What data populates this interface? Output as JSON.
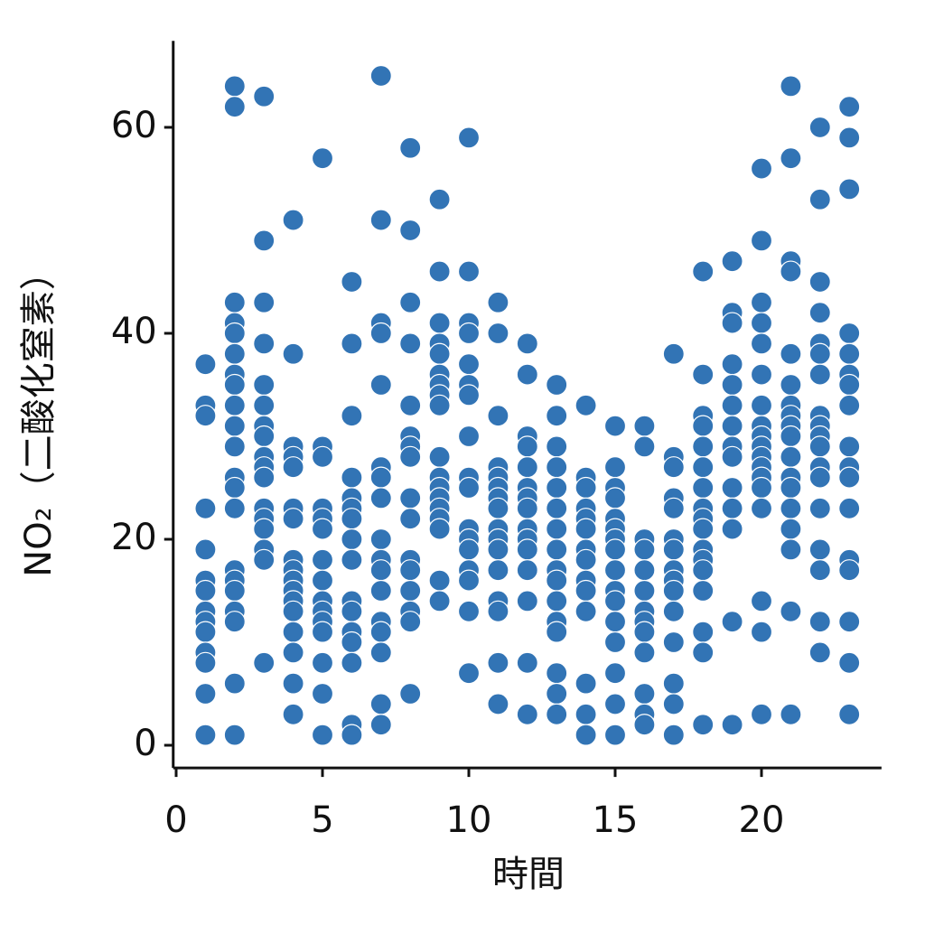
{
  "chart_data": {
    "type": "scatter",
    "xlabel": "時間",
    "ylabel": "NO₂（二酸化窒素）",
    "color": "#3274b5",
    "xlim": [
      -0.1,
      24.1
    ],
    "ylim": [
      -2.2,
      68.4
    ],
    "xticks": [
      0,
      5,
      10,
      15,
      20
    ],
    "yticks": [
      0,
      20,
      40,
      60
    ],
    "x": [
      1,
      1,
      1,
      1,
      1,
      1,
      1,
      1,
      1,
      1,
      1,
      1,
      1,
      1,
      2,
      2,
      2,
      2,
      2,
      2,
      2,
      2,
      2,
      2,
      2,
      2,
      2,
      2,
      2,
      2,
      2,
      2,
      2,
      2,
      2,
      3,
      3,
      3,
      3,
      3,
      3,
      3,
      3,
      3,
      3,
      3,
      3,
      3,
      3,
      3,
      3,
      3,
      4,
      4,
      4,
      4,
      4,
      4,
      4,
      4,
      4,
      4,
      4,
      4,
      4,
      4,
      4,
      4,
      4,
      5,
      5,
      5,
      5,
      5,
      5,
      5,
      5,
      5,
      5,
      5,
      5,
      5,
      5,
      5,
      6,
      6,
      6,
      6,
      6,
      6,
      6,
      6,
      6,
      6,
      6,
      6,
      6,
      6,
      6,
      6,
      7,
      7,
      7,
      7,
      7,
      7,
      7,
      7,
      7,
      7,
      7,
      7,
      7,
      7,
      7,
      7,
      7,
      8,
      8,
      8,
      8,
      8,
      8,
      8,
      8,
      8,
      8,
      8,
      8,
      8,
      8,
      8,
      8,
      9,
      9,
      9,
      9,
      9,
      9,
      9,
      9,
      9,
      9,
      9,
      9,
      9,
      9,
      9,
      9,
      9,
      9,
      10,
      10,
      10,
      10,
      10,
      10,
      10,
      10,
      10,
      10,
      10,
      10,
      10,
      10,
      10,
      10,
      10,
      11,
      11,
      11,
      11,
      11,
      11,
      11,
      11,
      11,
      11,
      11,
      11,
      11,
      11,
      11,
      11,
      12,
      12,
      12,
      12,
      12,
      12,
      12,
      12,
      12,
      12,
      12,
      12,
      12,
      12,
      12,
      13,
      13,
      13,
      13,
      13,
      13,
      13,
      13,
      13,
      13,
      13,
      13,
      13,
      13,
      13,
      13,
      14,
      14,
      14,
      14,
      14,
      14,
      14,
      14,
      14,
      14,
      14,
      14,
      14,
      14,
      15,
      15,
      15,
      15,
      15,
      15,
      15,
      15,
      15,
      15,
      15,
      15,
      15,
      15,
      15,
      15,
      16,
      16,
      16,
      16,
      16,
      16,
      16,
      16,
      16,
      16,
      16,
      16,
      16,
      17,
      17,
      17,
      17,
      17,
      17,
      17,
      17,
      17,
      17,
      17,
      17,
      17,
      17,
      17,
      18,
      18,
      18,
      18,
      18,
      18,
      18,
      18,
      18,
      18,
      18,
      18,
      18,
      18,
      18,
      18,
      18,
      19,
      19,
      19,
      19,
      19,
      19,
      19,
      19,
      19,
      19,
      19,
      19,
      19,
      19,
      20,
      20,
      20,
      20,
      20,
      20,
      20,
      20,
      20,
      20,
      20,
      20,
      20,
      20,
      20,
      20,
      20,
      20,
      21,
      21,
      21,
      21,
      21,
      21,
      21,
      21,
      21,
      21,
      21,
      21,
      21,
      21,
      21,
      21,
      21,
      21,
      22,
      22,
      22,
      22,
      22,
      22,
      22,
      22,
      22,
      22,
      22,
      22,
      22,
      22,
      22,
      22,
      22,
      22,
      23,
      23,
      23,
      23,
      23,
      23,
      23,
      23,
      23,
      23,
      23,
      23,
      23,
      23,
      23,
      23,
      23
    ],
    "values": [
      37,
      33,
      32,
      23,
      19,
      16,
      15,
      13,
      12,
      11,
      9,
      8,
      5,
      1,
      64,
      62,
      43,
      41,
      40,
      38,
      36,
      35,
      33,
      31,
      29,
      26,
      25,
      23,
      17,
      16,
      15,
      13,
      12,
      6,
      1,
      63,
      49,
      43,
      39,
      35,
      33,
      31,
      30,
      28,
      27,
      26,
      23,
      22,
      21,
      19,
      18,
      8,
      51,
      38,
      29,
      28,
      27,
      23,
      22,
      18,
      17,
      16,
      15,
      14,
      13,
      11,
      9,
      6,
      3,
      57,
      29,
      28,
      23,
      22,
      21,
      18,
      16,
      14,
      13,
      12,
      11,
      8,
      5,
      1,
      45,
      39,
      32,
      26,
      24,
      23,
      22,
      20,
      18,
      14,
      13,
      11,
      10,
      8,
      2,
      1,
      65,
      51,
      41,
      40,
      35,
      27,
      26,
      24,
      20,
      18,
      17,
      15,
      12,
      11,
      9,
      4,
      2,
      58,
      50,
      43,
      39,
      33,
      30,
      29,
      28,
      24,
      22,
      18,
      17,
      15,
      13,
      12,
      5,
      53,
      46,
      41,
      39,
      38,
      36,
      35,
      34,
      33,
      28,
      26,
      25,
      24,
      23,
      22,
      21,
      16,
      14,
      59,
      46,
      41,
      40,
      37,
      35,
      34,
      30,
      26,
      25,
      21,
      20,
      19,
      17,
      16,
      13,
      7,
      43,
      40,
      32,
      27,
      26,
      25,
      24,
      23,
      21,
      20,
      19,
      17,
      14,
      13,
      8,
      4,
      39,
      36,
      30,
      29,
      27,
      25,
      24,
      23,
      21,
      20,
      19,
      17,
      14,
      8,
      3,
      35,
      32,
      29,
      27,
      25,
      23,
      21,
      19,
      17,
      16,
      14,
      12,
      11,
      7,
      5,
      3,
      33,
      26,
      25,
      23,
      22,
      21,
      19,
      18,
      16,
      15,
      13,
      6,
      3,
      1,
      31,
      27,
      25,
      24,
      22,
      21,
      20,
      19,
      17,
      15,
      14,
      12,
      10,
      7,
      4,
      1,
      31,
      29,
      20,
      19,
      17,
      15,
      13,
      12,
      11,
      9,
      5,
      3,
      2,
      38,
      28,
      27,
      24,
      23,
      20,
      19,
      17,
      16,
      15,
      13,
      10,
      6,
      4,
      1,
      46,
      36,
      32,
      31,
      29,
      27,
      25,
      23,
      22,
      21,
      19,
      18,
      17,
      15,
      11,
      9,
      2,
      47,
      42,
      41,
      37,
      35,
      33,
      31,
      29,
      28,
      25,
      23,
      21,
      12,
      2,
      56,
      49,
      43,
      41,
      39,
      36,
      33,
      31,
      30,
      29,
      28,
      27,
      26,
      25,
      23,
      14,
      11,
      3,
      64,
      57,
      47,
      46,
      38,
      35,
      33,
      32,
      31,
      30,
      28,
      26,
      25,
      23,
      21,
      19,
      13,
      3,
      60,
      53,
      45,
      42,
      39,
      38,
      36,
      32,
      31,
      30,
      29,
      27,
      26,
      23,
      19,
      17,
      12,
      9,
      62,
      59,
      54,
      40,
      38,
      36,
      35,
      33,
      29,
      27,
      26,
      23,
      18,
      17,
      12,
      8,
      3
    ]
  }
}
